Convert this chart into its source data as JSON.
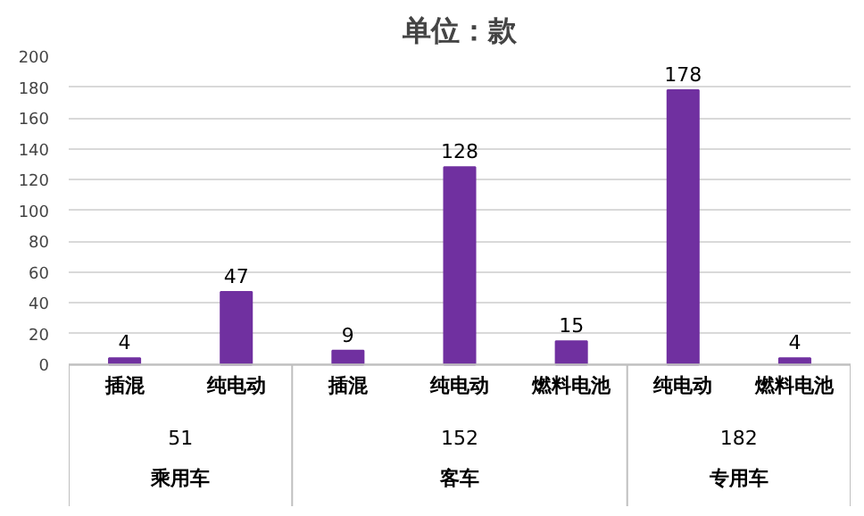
{
  "chart_data": {
    "type": "bar",
    "title": "单位：款",
    "categories": [
      "插混",
      "纯电动",
      "插混",
      "纯电动",
      "燃料电池",
      "纯电动",
      "燃料电池"
    ],
    "values": [
      4,
      47,
      9,
      128,
      15,
      178,
      4
    ],
    "color": "#7030a0",
    "ylim": [
      0,
      200
    ],
    "yticks": [
      0,
      20,
      40,
      60,
      80,
      100,
      120,
      140,
      160,
      180,
      200
    ],
    "grid": "y",
    "data_labels": true,
    "annotations": [
      "51",
      "乘用车",
      "152",
      "客车",
      "182",
      "专用车"
    ]
  }
}
